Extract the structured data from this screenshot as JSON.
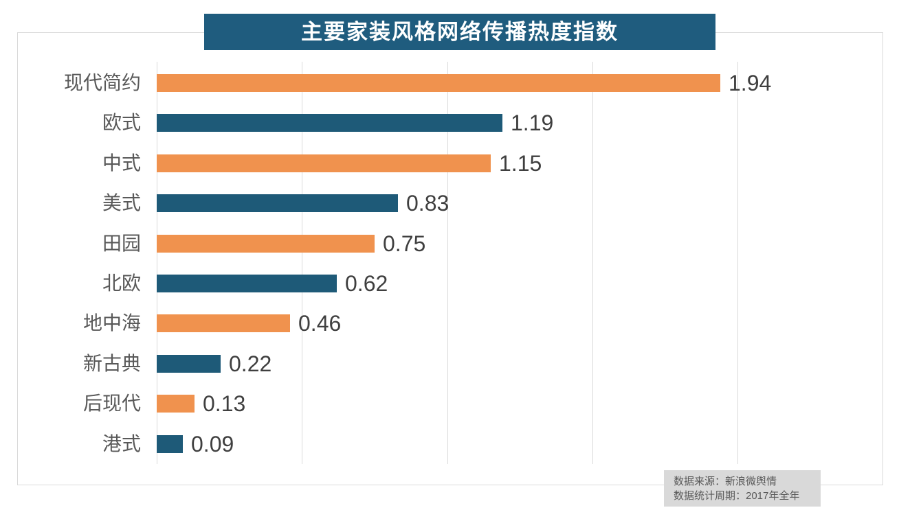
{
  "title": "主要家装风格网络传播热度指数",
  "footer": {
    "line1": "数据来源：新浪微舆情",
    "line2": "数据统计周期：2017年全年"
  },
  "colors": {
    "title_bg": "#1f5c7e",
    "bar_orange": "#f0924e",
    "bar_blue": "#1e5a78",
    "gridline": "#d9d9d9",
    "frame_border": "#d9d9d9",
    "category_text": "#595959",
    "value_text": "#3f3f3f",
    "note_bg": "#d9d9d9",
    "note_text": "#595959",
    "title_text": "#ffffff"
  },
  "chart_data": {
    "type": "bar",
    "orientation": "horizontal",
    "title": "主要家装风格网络传播热度指数",
    "categories": [
      "现代简约",
      "欧式",
      "中式",
      "美式",
      "田园",
      "北欧",
      "地中海",
      "新古典",
      "后现代",
      "港式"
    ],
    "values": [
      1.94,
      1.19,
      1.15,
      0.83,
      0.75,
      0.62,
      0.46,
      0.22,
      0.13,
      0.09
    ],
    "value_labels": [
      "1.94",
      "1.19",
      "1.15",
      "0.83",
      "0.75",
      "0.62",
      "0.46",
      "0.22",
      "0.13",
      "0.09"
    ],
    "bar_color_pattern": [
      "#f0924e",
      "#1e5a78"
    ],
    "xlim": [
      0,
      2
    ],
    "gridline_values": [
      0,
      0.5,
      1,
      1.5,
      2
    ],
    "grid": "vertical-only",
    "legend": "none",
    "axis_tick_labels": "none",
    "data_labels": "outside-end",
    "source_note": [
      "数据来源：新浪微舆情",
      "数据统计周期：2017年全年"
    ]
  }
}
